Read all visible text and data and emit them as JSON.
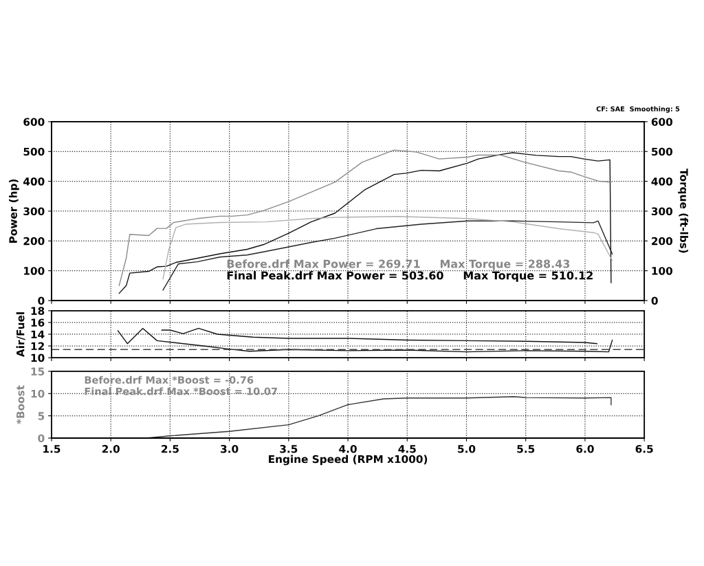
{
  "chart_data": [
    {
      "type": "line",
      "xlim": [
        1.5,
        6.5
      ],
      "xticks": [
        1.5,
        2.0,
        2.5,
        3.0,
        3.5,
        4.0,
        4.5,
        5.0,
        5.5,
        6.0,
        6.5
      ],
      "ylim": [
        0,
        600
      ],
      "yticks": [
        0,
        100,
        200,
        300,
        400,
        500,
        600
      ],
      "y2lim": [
        0,
        600
      ],
      "y2ticks": [
        0,
        100,
        200,
        300,
        400,
        500,
        600
      ],
      "ylabel": "Power (hp)",
      "y2label": "Torque (ft-lbs)",
      "grid": true,
      "line_style": "solid",
      "tick_labels": "y",
      "annotations": [
        "CF: SAE  Smoothing: 5",
        "Before.drf Max Power = 269.71     Max Torque = 288.43",
        "Final Peak.drf Max Power = 503.60     Max Torque = 510.12"
      ],
      "series": [
        {
          "color": "#8a8a8a",
          "axis": "y2",
          "x": [
            2.07,
            2.13,
            2.16,
            2.32,
            2.39,
            2.47,
            2.53,
            2.73,
            2.92,
            3.02,
            3.15,
            3.29,
            3.5,
            3.89,
            4.12,
            4.39,
            4.58,
            4.77,
            5.01,
            5.1,
            5.29,
            5.49,
            5.78,
            5.88,
            5.99,
            6.11,
            6.22
          ],
          "values": [
            50,
            142,
            222,
            218,
            242,
            242,
            262,
            275,
            283,
            283,
            287,
            302,
            332,
            397,
            464,
            505,
            498,
            475,
            481,
            488,
            488,
            464,
            435,
            431,
            416,
            401,
            397
          ]
        },
        {
          "color": "#111111",
          "x": [
            2.07,
            2.13,
            2.16,
            2.32,
            2.39,
            2.47,
            2.55,
            2.73,
            2.92,
            3.15,
            3.29,
            3.5,
            3.69,
            3.89,
            4.14,
            4.39,
            4.49,
            4.62,
            4.77,
            5.01,
            5.1,
            5.29,
            5.39,
            5.59,
            5.78,
            5.88,
            5.99,
            6.11,
            6.21,
            6.22
          ],
          "values": [
            24,
            50,
            92,
            98,
            113,
            115,
            128,
            142,
            157,
            172,
            188,
            226,
            264,
            293,
            371,
            423,
            427,
            437,
            435,
            461,
            475,
            490,
            496,
            487,
            483,
            483,
            475,
            468,
            472,
            60
          ]
        },
        {
          "color": "#222222",
          "x": [
            2.44,
            2.53,
            2.57,
            2.73,
            2.92,
            3.15,
            3.31,
            3.5,
            3.69,
            3.89,
            4.24,
            4.62,
            5.01,
            5.39,
            5.78,
            6.07,
            6.11,
            6.23
          ],
          "values": [
            35,
            96,
            123,
            130,
            146,
            153,
            165,
            180,
            195,
            209,
            241,
            256,
            267,
            267,
            264,
            261,
            267,
            156
          ]
        },
        {
          "color": "#b0b0b0",
          "axis": "y2",
          "x": [
            2.44,
            2.49,
            2.55,
            2.63,
            2.92,
            3.31,
            3.69,
            3.89,
            4.43,
            5.01,
            5.39,
            5.78,
            6.07,
            6.11,
            6.23
          ],
          "values": [
            73,
            172,
            245,
            256,
            262,
            264,
            275,
            279,
            282,
            275,
            264,
            241,
            228,
            223,
            134
          ]
        }
      ]
    },
    {
      "type": "line",
      "xlim": [
        1.5,
        6.5
      ],
      "xticks": [
        1.5,
        2.0,
        2.5,
        3.0,
        3.5,
        4.0,
        4.5,
        5.0,
        5.5,
        6.0,
        6.5
      ],
      "ylim": [
        10,
        18
      ],
      "yticks": [
        10,
        12,
        14,
        16,
        18
      ],
      "ylabel": "Air/Fuel",
      "grid": true,
      "line_style": "solid",
      "tick_labels": "y",
      "ref_lines": [
        {
          "axis": "y",
          "value": 11.4,
          "line_style": "dashed",
          "color": "#444444"
        }
      ],
      "series": [
        {
          "color": "#111111",
          "x": [
            2.06,
            2.14,
            2.27,
            2.39,
            2.78,
            2.99,
            3.17,
            3.5,
            4.0,
            4.5,
            5.0,
            5.5,
            6.0,
            6.2,
            6.23
          ],
          "values": [
            14.6,
            12.4,
            15.0,
            12.9,
            12.0,
            11.5,
            11.1,
            11.4,
            11.2,
            11.3,
            11.0,
            11.2,
            11.1,
            11.0,
            13.0
          ]
        },
        {
          "color": "#111111",
          "x": [
            2.43,
            2.5,
            2.61,
            2.74,
            2.9,
            3.2,
            3.5,
            4.0,
            4.5,
            5.0,
            5.5,
            6.0,
            6.1
          ],
          "values": [
            14.7,
            14.7,
            14.1,
            15.0,
            14.0,
            13.5,
            13.3,
            13.3,
            13.0,
            12.9,
            12.8,
            12.6,
            12.4
          ]
        }
      ]
    },
    {
      "type": "line",
      "xlim": [
        1.5,
        6.5
      ],
      "xticks": [
        1.5,
        {
          "value": 2,
          "label": "2.0"
        },
        2.5,
        {
          "value": 3,
          "label": "3.0"
        },
        3.5,
        {
          "value": 4,
          "label": "4.0"
        },
        4.5,
        {
          "value": 5,
          "label": "5.0"
        },
        5.5,
        {
          "value": 6,
          "label": "6.0"
        },
        6.5
      ],
      "ylim": [
        0,
        15
      ],
      "yticks": [
        0,
        5,
        10,
        15
      ],
      "ylabel": "*Boost",
      "xlabel": "Engine Speed (RPM x1000)",
      "grid": true,
      "line_style": "solid",
      "annotations": [
        "Before.drf Max *Boost = -0.76",
        "Final Peak.drf Max *Boost = 10.07"
      ],
      "series": [
        {
          "color": "#333333",
          "x": [
            2.3,
            2.5,
            3.0,
            3.5,
            3.75,
            4.0,
            4.3,
            4.5,
            5.0,
            5.4,
            5.5,
            6.0,
            6.22,
            6.22
          ],
          "values": [
            0,
            0.5,
            1.5,
            3.0,
            5.0,
            7.5,
            8.8,
            9.0,
            9.0,
            9.3,
            9.1,
            9.0,
            9.1,
            7.5
          ]
        }
      ]
    }
  ]
}
